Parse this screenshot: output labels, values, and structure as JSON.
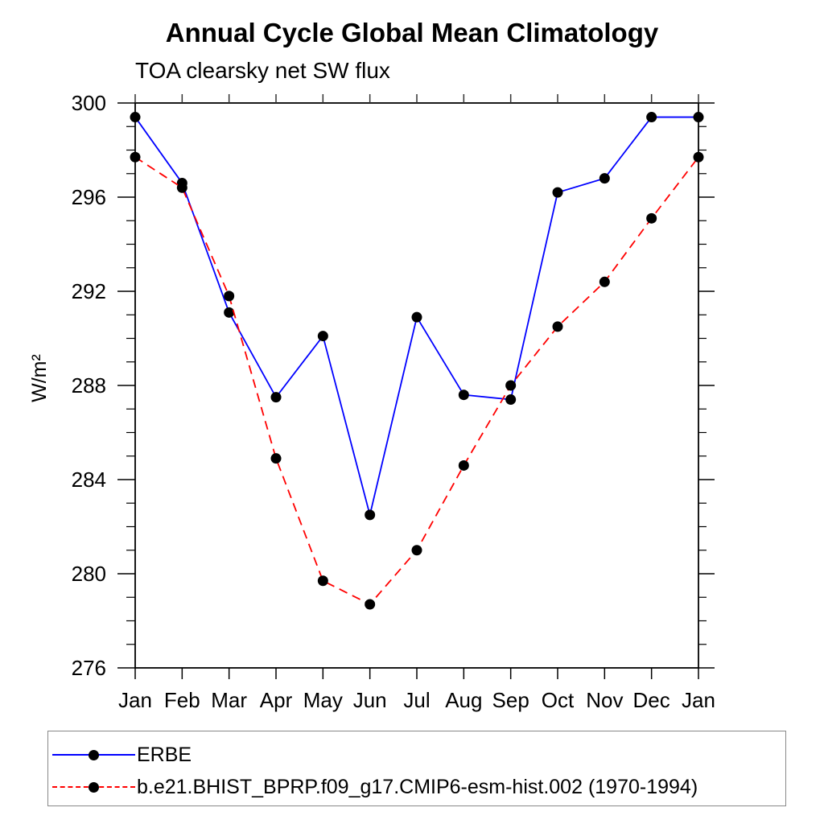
{
  "title": "Annual Cycle Global Mean Climatology",
  "subtitle": "TOA clearsky net SW flux",
  "chart_data": {
    "type": "line",
    "title": "Annual Cycle Global Mean Climatology",
    "subtitle": "TOA clearsky net SW flux",
    "ylabel": "W/m²",
    "xlabel": "",
    "ylim": [
      276,
      300
    ],
    "y_major_ticks": [
      276,
      280,
      284,
      288,
      292,
      296,
      300
    ],
    "y_minor_tick_interval": 1,
    "x_categories": [
      "Jan",
      "Feb",
      "Mar",
      "Apr",
      "May",
      "Jun",
      "Jul",
      "Aug",
      "Sep",
      "Oct",
      "Nov",
      "Dec",
      "Jan"
    ],
    "grid": false,
    "legend_position": "bottom-left-box",
    "marker": "filled-circle",
    "marker_color": "#000000",
    "series": [
      {
        "name": "ERBE",
        "color": "#0000ff",
        "line_style": "solid",
        "values": [
          299.4,
          296.6,
          291.1,
          287.5,
          290.1,
          282.5,
          290.9,
          287.6,
          287.4,
          296.2,
          296.8,
          299.4,
          299.4
        ]
      },
      {
        "name": "b.e21.BHIST_BPRP.f09_g17.CMIP6-esm-hist.002 (1970-1994)",
        "color": "#ff0000",
        "line_style": "dashed",
        "values": [
          297.7,
          296.4,
          291.8,
          284.9,
          279.7,
          278.7,
          281.0,
          284.6,
          288.0,
          290.5,
          292.4,
          295.1,
          297.7
        ]
      }
    ]
  }
}
